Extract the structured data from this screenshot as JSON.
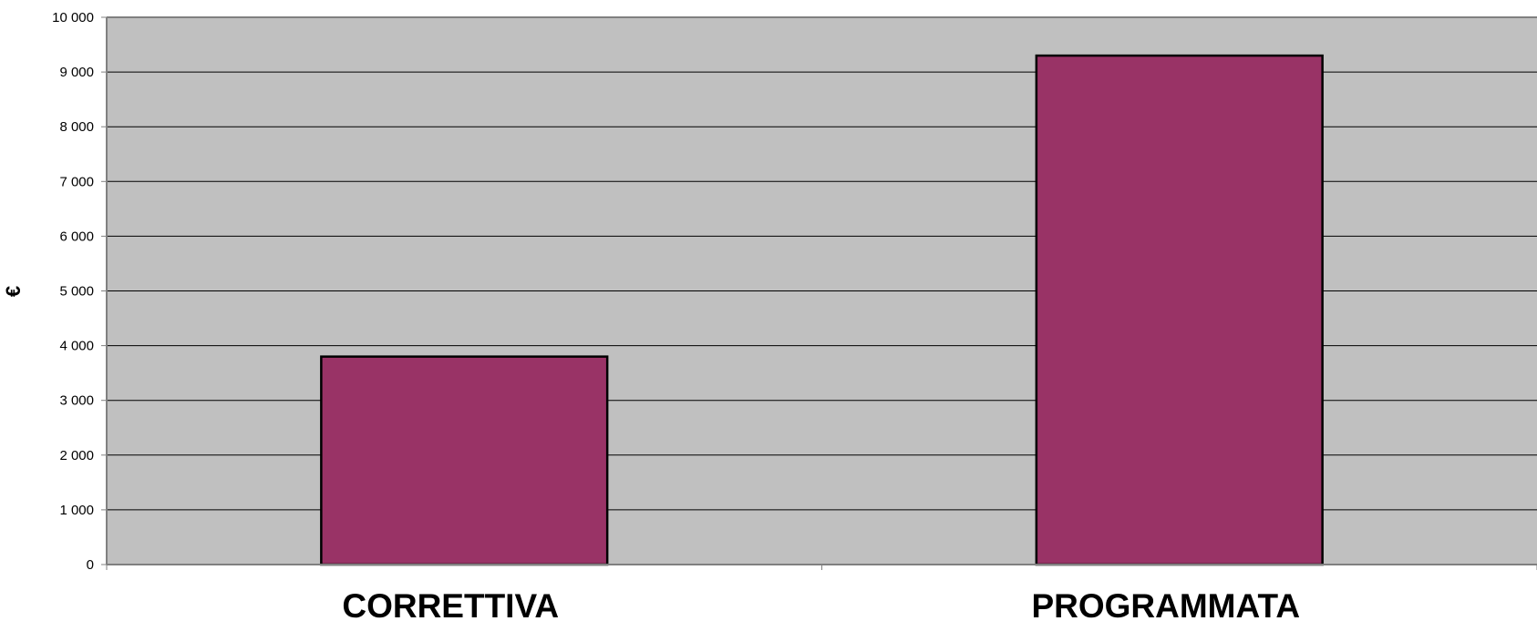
{
  "chart_data": {
    "type": "bar",
    "categories": [
      "CORRETTIVA",
      "PROGRAMMATA"
    ],
    "values": [
      3800,
      9300
    ],
    "ylabel": "€",
    "xlabel": "",
    "title": "",
    "ylim": [
      0,
      10000
    ],
    "yticks": [
      0,
      1000,
      2000,
      3000,
      4000,
      5000,
      6000,
      7000,
      8000,
      9000,
      10000
    ],
    "ytick_labels": [
      "0",
      "1 000",
      "2 000",
      "3 000",
      "4 000",
      "5 000",
      "6 000",
      "7 000",
      "8 000",
      "9 000",
      "10 000"
    ],
    "grid": true,
    "legend": "none",
    "colors": {
      "bar": "#993366",
      "plot_background": "#C0C0C0",
      "gridline": "#000000",
      "axis": "#808080"
    }
  }
}
